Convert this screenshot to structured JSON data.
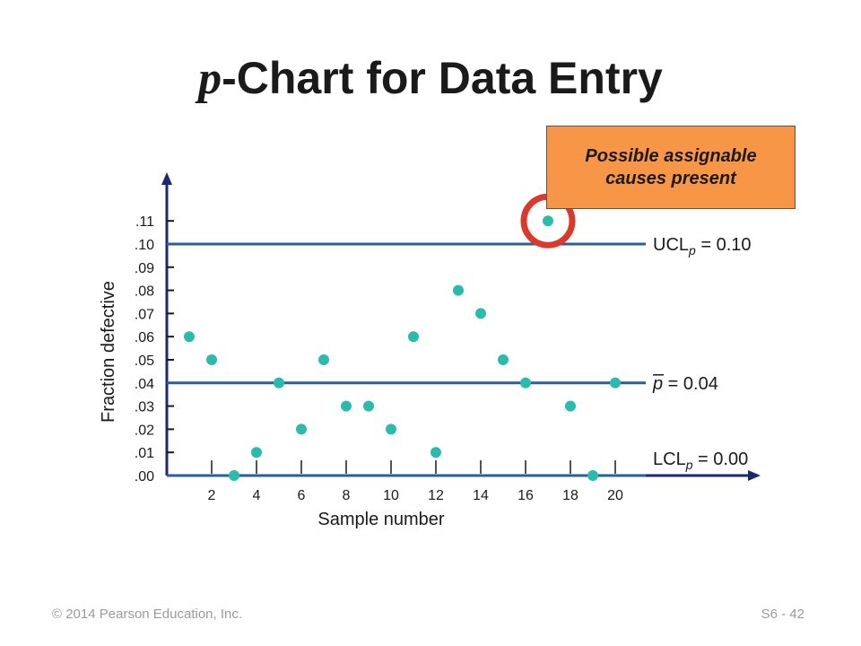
{
  "slide": {
    "title_var": "p",
    "title_rest": "-Chart for Data Entry",
    "footer_left": "© 2014 Pearson Education, Inc.",
    "footer_right": "S6 - 42"
  },
  "callout": {
    "text": "Possible assignable causes present",
    "color": "#f79646"
  },
  "chart_data": {
    "type": "scatter",
    "title": "p-Chart for Data Entry",
    "xlabel": "Sample number",
    "ylabel": "Fraction defective",
    "x": [
      1,
      2,
      3,
      4,
      5,
      6,
      7,
      8,
      9,
      10,
      11,
      12,
      13,
      14,
      15,
      16,
      17,
      18,
      19,
      20
    ],
    "y": [
      0.06,
      0.05,
      0.0,
      0.01,
      0.04,
      0.02,
      0.05,
      0.03,
      0.03,
      0.02,
      0.06,
      0.01,
      0.08,
      0.07,
      0.05,
      0.04,
      0.11,
      0.03,
      0.0,
      0.04
    ],
    "xlim": [
      0,
      21
    ],
    "ylim": [
      0,
      0.11
    ],
    "x_ticks": [
      2,
      4,
      6,
      8,
      10,
      12,
      14,
      16,
      18,
      20
    ],
    "x_tick_labels": [
      "2",
      "4",
      "6",
      "8",
      "10",
      "12",
      "14",
      "16",
      "18",
      "20"
    ],
    "y_ticks": [
      0,
      0.01,
      0.02,
      0.03,
      0.04,
      0.05,
      0.06,
      0.07,
      0.08,
      0.09,
      0.1,
      0.11
    ],
    "y_tick_labels": [
      ".00",
      ".01",
      ".02",
      ".03",
      ".04",
      ".05",
      ".06",
      ".07",
      ".08",
      ".09",
      ".10",
      ".11"
    ],
    "reference_lines": [
      {
        "name": "UCL",
        "value": 0.1,
        "label_main": "UCL",
        "label_sub": "p",
        "label_value": "= 0.10"
      },
      {
        "name": "p-bar",
        "value": 0.04,
        "label_main": "p",
        "label_sub": "",
        "label_value": "=  0.04"
      },
      {
        "name": "LCL",
        "value": 0.0,
        "label_main": "LCL",
        "label_sub": "p",
        "label_value": "= 0.00"
      }
    ],
    "highlighted_sample": 17,
    "colors": {
      "points": "#2bbbad",
      "lines": "#2a5f9a",
      "highlight": "#d93a2b",
      "axis": "#1a2a6c"
    }
  }
}
